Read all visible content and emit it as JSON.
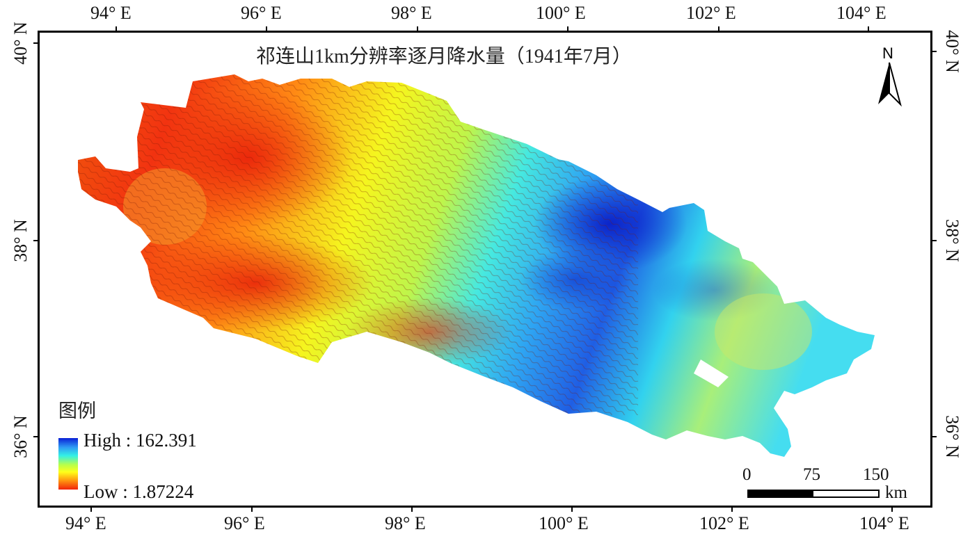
{
  "map": {
    "title": "祁连山1km分辨率逐月降水量（1941年7月）",
    "north_label": "N",
    "top_ticks": [
      "94° E",
      "96° E",
      "98° E",
      "100° E",
      "102° E",
      "104° E"
    ],
    "bottom_ticks": [
      "94° E",
      "96° E",
      "98° E",
      "100° E",
      "102° E",
      "104° E"
    ],
    "left_ticks": [
      "40° N",
      "38° N",
      "36° N"
    ],
    "right_ticks": [
      "40° N",
      "38° N",
      "36° N"
    ]
  },
  "legend": {
    "title": "图例",
    "high_label": "High : 162.391",
    "low_label": "Low : 1.87224",
    "colors": [
      "#0a1fd6",
      "#2f9cf4",
      "#33f0e6",
      "#b8ff4a",
      "#ffff1a",
      "#ff9a10",
      "#f2240c"
    ]
  },
  "scale_bar": {
    "labels": [
      "0",
      "75",
      "150"
    ],
    "unit": "km"
  },
  "colors": {
    "frame": "#000000",
    "background": "#ffffff"
  }
}
